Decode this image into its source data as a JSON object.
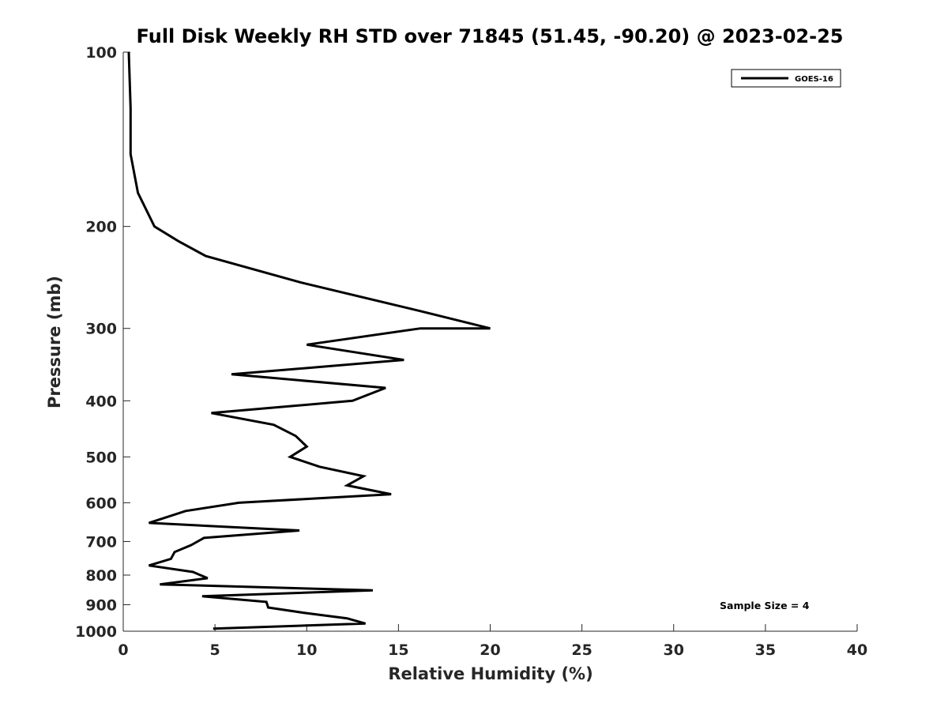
{
  "chart_data": {
    "type": "line",
    "title": "Full Disk Weekly RH STD over 71845 (51.45, -90.20) @ 2023-02-25",
    "xlabel": "Relative Humidity (%)",
    "ylabel": "Pressure (mb)",
    "xlim": [
      0,
      40
    ],
    "ylim": [
      100,
      1000
    ],
    "y_scale": "log",
    "y_reversed": true,
    "x_ticks": [
      0,
      5,
      10,
      15,
      20,
      25,
      30,
      35,
      40
    ],
    "y_ticks": [
      100,
      200,
      300,
      400,
      500,
      600,
      700,
      800,
      900,
      1000
    ],
    "grid": false,
    "legend": {
      "position": "top-right",
      "entries": [
        "GOES-16"
      ]
    },
    "annotation": "Sample Size = 4",
    "series": [
      {
        "name": "GOES-16",
        "color": "#000000",
        "points": [
          [
            0.3,
            100
          ],
          [
            0.4,
            125
          ],
          [
            0.4,
            150
          ],
          [
            0.8,
            175
          ],
          [
            1.7,
            200
          ],
          [
            3.0,
            212
          ],
          [
            4.5,
            225
          ],
          [
            9.7,
            250
          ],
          [
            16.2,
            280
          ],
          [
            20.0,
            300
          ],
          [
            16.2,
            300
          ],
          [
            10.0,
            320
          ],
          [
            15.3,
            340
          ],
          [
            5.9,
            360
          ],
          [
            14.3,
            380
          ],
          [
            12.5,
            400
          ],
          [
            4.8,
            420
          ],
          [
            8.2,
            440
          ],
          [
            9.4,
            460
          ],
          [
            10.0,
            480
          ],
          [
            9.1,
            500
          ],
          [
            10.7,
            520
          ],
          [
            13.1,
            540
          ],
          [
            12.2,
            560
          ],
          [
            14.6,
            580
          ],
          [
            6.3,
            600
          ],
          [
            3.4,
            620
          ],
          [
            1.4,
            650
          ],
          [
            9.6,
            670
          ],
          [
            4.4,
            690
          ],
          [
            3.7,
            710
          ],
          [
            2.8,
            730
          ],
          [
            2.6,
            750
          ],
          [
            1.4,
            770
          ],
          [
            3.8,
            790
          ],
          [
            4.6,
            810
          ],
          [
            2.0,
            830
          ],
          [
            13.6,
            850
          ],
          [
            4.3,
            870
          ],
          [
            7.8,
            890
          ],
          [
            7.9,
            910
          ],
          [
            9.9,
            930
          ],
          [
            12.2,
            950
          ],
          [
            13.2,
            970
          ],
          [
            4.9,
            990
          ]
        ]
      }
    ]
  }
}
